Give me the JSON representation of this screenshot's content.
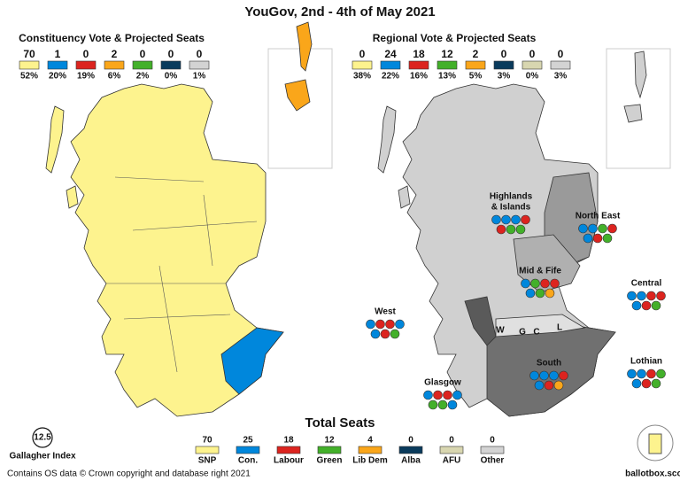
{
  "title": "YouGov, 2nd - 4th of May 2021",
  "constituency": {
    "heading": "Constituency Vote & Projected Seats",
    "parties": [
      {
        "seats": 70,
        "share": "52%",
        "color": "#fdf38e"
      },
      {
        "seats": 1,
        "share": "20%",
        "color": "#0087dc"
      },
      {
        "seats": 0,
        "share": "19%",
        "color": "#dc241f"
      },
      {
        "seats": 2,
        "share": "6%",
        "color": "#faa61a"
      },
      {
        "seats": 0,
        "share": "2%",
        "color": "#43b02a"
      },
      {
        "seats": 0,
        "share": "0%",
        "color": "#0a3b5c"
      },
      {
        "seats": 0,
        "share": "1%",
        "color": "#d3d3d3"
      }
    ]
  },
  "regional": {
    "heading": "Regional Vote & Projected Seats",
    "parties": [
      {
        "seats": 0,
        "share": "38%",
        "color": "#fdf38e"
      },
      {
        "seats": 24,
        "share": "22%",
        "color": "#0087dc"
      },
      {
        "seats": 18,
        "share": "16%",
        "color": "#dc241f"
      },
      {
        "seats": 12,
        "share": "13%",
        "color": "#43b02a"
      },
      {
        "seats": 2,
        "share": "5%",
        "color": "#faa61a"
      },
      {
        "seats": 0,
        "share": "3%",
        "color": "#0a3b5c"
      },
      {
        "seats": 0,
        "share": "0%",
        "color": "#d8d6b0"
      },
      {
        "seats": 0,
        "share": "3%",
        "color": "#d3d3d3"
      }
    ]
  },
  "regions": [
    {
      "lines": [
        "Highlands",
        "& Islands"
      ],
      "seats": [
        "#0087dc",
        "#0087dc",
        "#0087dc",
        "#dc241f",
        "#dc241f",
        "#43b02a",
        "#43b02a"
      ]
    },
    {
      "lines": [
        "North East"
      ],
      "seats": [
        "#0087dc",
        "#0087dc",
        "#43b02a",
        "#dc241f",
        "#0087dc",
        "#dc241f",
        "#43b02a"
      ]
    },
    {
      "lines": [
        "Mid & Fife"
      ],
      "seats": [
        "#0087dc",
        "#43b02a",
        "#dc241f",
        "#dc241f",
        "#0087dc",
        "#43b02a",
        "#faa61a"
      ]
    },
    {
      "lines": [
        "Central"
      ],
      "seats": [
        "#0087dc",
        "#0087dc",
        "#dc241f",
        "#dc241f",
        "#0087dc",
        "#dc241f",
        "#43b02a"
      ]
    },
    {
      "lines": [
        "West"
      ],
      "seats": [
        "#0087dc",
        "#dc241f",
        "#dc241f",
        "#0087dc",
        "#0087dc",
        "#dc241f",
        "#43b02a"
      ]
    },
    {
      "lines": [
        "Lothian"
      ],
      "seats": [
        "#0087dc",
        "#0087dc",
        "#dc241f",
        "#43b02a",
        "#0087dc",
        "#dc241f",
        "#43b02a"
      ]
    },
    {
      "lines": [
        "Glasgow"
      ],
      "seats": [
        "#0087dc",
        "#dc241f",
        "#dc241f",
        "#0087dc",
        "#43b02a",
        "#43b02a",
        "#0087dc"
      ]
    },
    {
      "lines": [
        "South"
      ],
      "seats": [
        "#0087dc",
        "#0087dc",
        "#0087dc",
        "#dc241f",
        "#0087dc",
        "#dc241f",
        "#faa61a"
      ]
    }
  ],
  "small_regions": [
    "W",
    "G",
    "C",
    "L"
  ],
  "totals": {
    "heading": "Total Seats",
    "parties": [
      {
        "seats": 70,
        "name": "SNP",
        "color": "#fdf38e"
      },
      {
        "seats": 25,
        "name": "Con.",
        "color": "#0087dc"
      },
      {
        "seats": 18,
        "name": "Labour",
        "color": "#dc241f"
      },
      {
        "seats": 12,
        "name": "Green",
        "color": "#43b02a"
      },
      {
        "seats": 4,
        "name": "Lib Dem",
        "color": "#faa61a"
      },
      {
        "seats": 0,
        "name": "Alba",
        "color": "#0a3b5c"
      },
      {
        "seats": 0,
        "name": "AFU",
        "color": "#d8d6b0"
      },
      {
        "seats": 0,
        "name": "Other",
        "color": "#d3d3d3"
      }
    ]
  },
  "gallagher": {
    "value": 12.5,
    "label": "Gallagher Index"
  },
  "footer": "Contains OS data © Crown copyright and database right 2021",
  "brand": "ballotbox.scot"
}
